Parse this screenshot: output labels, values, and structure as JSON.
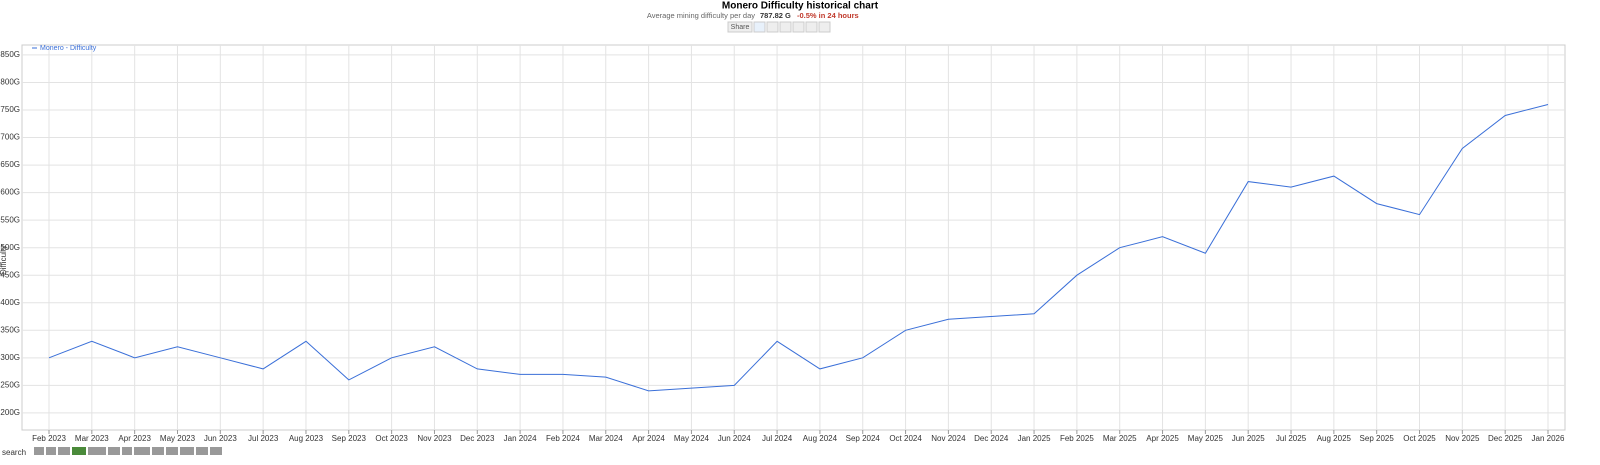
{
  "chart_data": {
    "type": "line",
    "title": "Monero Difficulty historical chart",
    "subtitle": "Average mining difficulty per day",
    "current_value": "787.82 G",
    "change": "-0.5% in 24 hours",
    "share_label": "Share",
    "search_label": "search",
    "y_axis_label": "Difficulty",
    "grid": true,
    "legend_position": "top-left",
    "x": [
      "Feb 2023",
      "Mar 2023",
      "Apr 2023",
      "May 2023",
      "Jun 2023",
      "Jul 2023",
      "Aug 2023",
      "Sep 2023",
      "Oct 2023",
      "Nov 2023",
      "Dec 2023",
      "Jan 2024",
      "Feb 2024",
      "Mar 2024",
      "Apr 2024",
      "May 2024",
      "Jun 2024",
      "Jul 2024",
      "Aug 2024",
      "Sep 2024",
      "Oct 2024",
      "Nov 2024",
      "Dec 2024",
      "Jan 2025",
      "Feb 2025",
      "Mar 2025",
      "Apr 2025",
      "May 2025",
      "Jun 2025",
      "Jul 2025",
      "Aug 2025",
      "Sep 2025",
      "Oct 2025",
      "Nov 2025",
      "Dec 2025",
      "Jan 2026"
    ],
    "series": [
      {
        "name": "Monero - Difficulty",
        "color": "#3a6fd8",
        "values": [
          300,
          330,
          300,
          320,
          300,
          280,
          330,
          260,
          300,
          320,
          280,
          270,
          270,
          265,
          240,
          245,
          250,
          330,
          280,
          300,
          350,
          370,
          375,
          380,
          450,
          500,
          520,
          490,
          620,
          610,
          630,
          580,
          560,
          680,
          740,
          760
        ]
      }
    ],
    "ylim": [
      169,
      868
    ],
    "yticks": [
      {
        "value": 200,
        "label": "200G"
      },
      {
        "value": 250,
        "label": "250G"
      },
      {
        "value": 300,
        "label": "300G"
      },
      {
        "value": 350,
        "label": "350G"
      },
      {
        "value": 400,
        "label": "400G"
      },
      {
        "value": 450,
        "label": "450G"
      },
      {
        "value": 500,
        "label": "500G"
      },
      {
        "value": 550,
        "label": "550G"
      },
      {
        "value": 600,
        "label": "600G"
      },
      {
        "value": 650,
        "label": "650G"
      },
      {
        "value": 700,
        "label": "700G"
      },
      {
        "value": 750,
        "label": "750G"
      },
      {
        "value": 800,
        "label": "800G"
      },
      {
        "value": 850,
        "label": "850G"
      }
    ]
  }
}
